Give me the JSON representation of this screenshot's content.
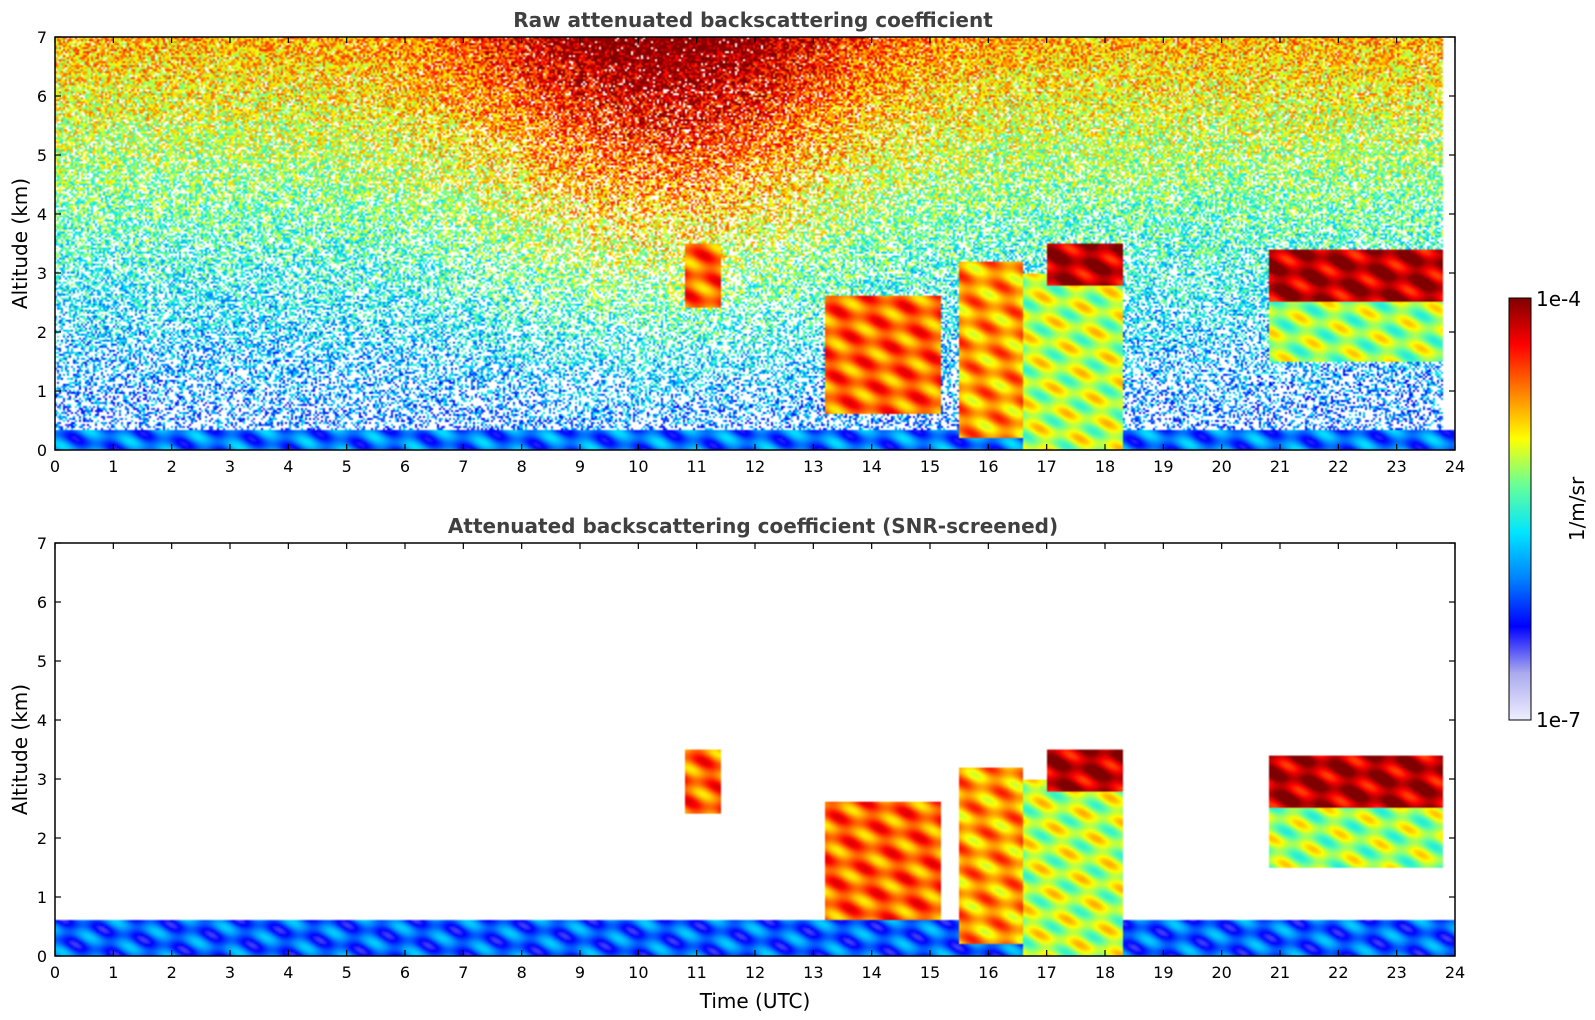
{
  "colorbar": {
    "max_label": "1e-4",
    "min_label": "1e-7",
    "unit_label": "1/m/sr",
    "colormap": "jet with light-lavender low end",
    "stops": [
      "#eeeeff",
      "#aaaaee",
      "#0000ff",
      "#0080ff",
      "#00e5ff",
      "#66ff99",
      "#ffff00",
      "#ff8000",
      "#ff0000",
      "#800000"
    ]
  },
  "chart_data": [
    {
      "type": "heatmap",
      "title": "Raw attenuated backscattering coefficient",
      "xlabel": "",
      "ylabel": "Altitude (km)",
      "xlim": [
        0,
        24
      ],
      "ylim": [
        0,
        7
      ],
      "x_ticks": [
        "0",
        "1",
        "2",
        "3",
        "4",
        "5",
        "6",
        "7",
        "8",
        "9",
        "10",
        "11",
        "12",
        "13",
        "14",
        "15",
        "16",
        "17",
        "18",
        "19",
        "20",
        "21",
        "22",
        "23",
        "24"
      ],
      "y_ticks": [
        "0",
        "1",
        "2",
        "3",
        "4",
        "5",
        "6",
        "7"
      ],
      "grid": false,
      "screened": false,
      "features": [
        {
          "t0": 0,
          "t1": 24,
          "h0": 0,
          "h1": 0.35,
          "level": 0.32
        },
        {
          "t0": 13.2,
          "t1": 15.2,
          "h0": 0.6,
          "h1": 2.6,
          "level": 0.8
        },
        {
          "t0": 15.5,
          "t1": 16.6,
          "h0": 0.2,
          "h1": 3.2,
          "level": 0.75
        },
        {
          "t0": 16.6,
          "t1": 18.3,
          "h0": 0,
          "h1": 3.0,
          "level": 0.62
        },
        {
          "t0": 17.0,
          "t1": 18.3,
          "h0": 2.8,
          "h1": 3.5,
          "level": 0.95
        },
        {
          "t0": 20.8,
          "t1": 23.8,
          "h0": 2.5,
          "h1": 3.4,
          "level": 0.95
        },
        {
          "t0": 20.8,
          "t1": 23.8,
          "h0": 1.5,
          "h1": 2.8,
          "level": 0.6
        },
        {
          "t0": 10.8,
          "t1": 11.4,
          "h0": 2.4,
          "h1": 3.5,
          "level": 0.8
        }
      ]
    },
    {
      "type": "heatmap",
      "title": "Attenuated backscattering coefficient (SNR-screened)",
      "xlabel": "Time (UTC)",
      "ylabel": "Altitude (km)",
      "xlim": [
        0,
        24
      ],
      "ylim": [
        0,
        7
      ],
      "x_ticks": [
        "0",
        "1",
        "2",
        "3",
        "4",
        "5",
        "6",
        "7",
        "8",
        "9",
        "10",
        "11",
        "12",
        "13",
        "14",
        "15",
        "16",
        "17",
        "18",
        "19",
        "20",
        "21",
        "22",
        "23",
        "24"
      ],
      "y_ticks": [
        "0",
        "1",
        "2",
        "3",
        "4",
        "5",
        "6",
        "7"
      ],
      "grid": false,
      "screened": true,
      "features": [
        {
          "t0": 0,
          "t1": 24,
          "h0": 0,
          "h1": 0.6,
          "level": 0.3
        },
        {
          "t0": 13.2,
          "t1": 15.2,
          "h0": 0.6,
          "h1": 2.6,
          "level": 0.8
        },
        {
          "t0": 15.5,
          "t1": 16.6,
          "h0": 0.2,
          "h1": 3.2,
          "level": 0.75
        },
        {
          "t0": 16.6,
          "t1": 18.3,
          "h0": 0,
          "h1": 3.0,
          "level": 0.62
        },
        {
          "t0": 17.0,
          "t1": 18.3,
          "h0": 2.8,
          "h1": 3.5,
          "level": 0.95
        },
        {
          "t0": 20.8,
          "t1": 23.8,
          "h0": 2.5,
          "h1": 3.4,
          "level": 0.95
        },
        {
          "t0": 20.8,
          "t1": 23.8,
          "h0": 1.5,
          "h1": 2.8,
          "level": 0.6
        },
        {
          "t0": 10.8,
          "t1": 11.4,
          "h0": 2.4,
          "h1": 3.5,
          "level": 0.8
        }
      ]
    }
  ]
}
